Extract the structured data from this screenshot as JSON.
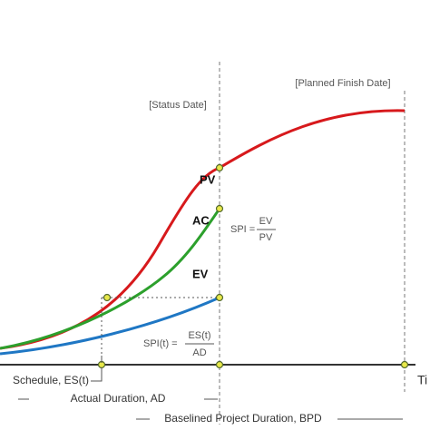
{
  "markers": {
    "planned_finish": "[Planned Finish Date]",
    "status_date": "[Status Date]"
  },
  "curves": {
    "pv": "PV",
    "ac": "AC",
    "ev": "EV"
  },
  "formulas": {
    "spi": {
      "lhs": "SPI =",
      "num": "EV",
      "den": "PV"
    },
    "spi_t": {
      "lhs": "SPI(t) =",
      "num": "ES(t)",
      "den": "AD"
    }
  },
  "durations": {
    "es": "Schedule, ES(t)",
    "ad": "Actual Duration, AD",
    "bpd": "Baselined Project Duration, BPD"
  },
  "axis": {
    "x_label": "Ti"
  }
}
